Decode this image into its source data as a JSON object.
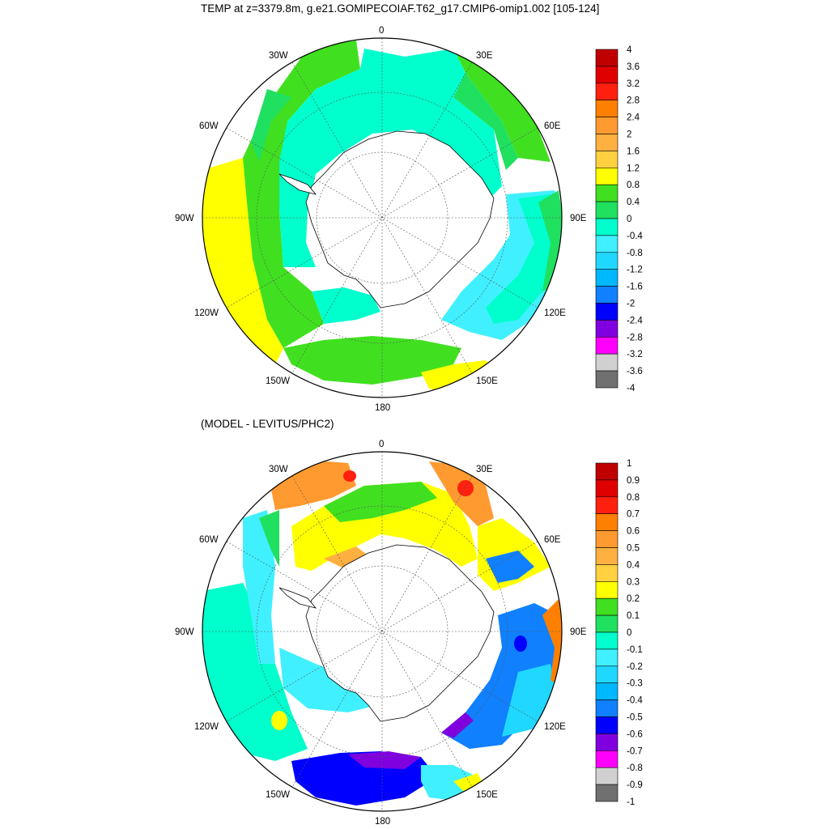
{
  "title": "TEMP at z=3379.8m, g.e21.GOMIPECOIAF.T62_g17.CMIP6-omip1.002 [105-124]",
  "subtitle": "(MODEL - LEVITUS/PHC2)",
  "longitude_labels": [
    "0",
    "30E",
    "60E",
    "90E",
    "120E",
    "150E",
    "180",
    "150W",
    "120W",
    "90W",
    "60W",
    "30W"
  ],
  "panels": [
    {
      "colorbar": {
        "labels": [
          "4",
          "3.6",
          "3.2",
          "2.8",
          "2.4",
          "2",
          "1.6",
          "1.2",
          "0.8",
          "0.4",
          "0",
          "-0.4",
          "-0.8",
          "-1.2",
          "-1.6",
          "-2",
          "-2.4",
          "-2.8",
          "-3.2",
          "-3.6",
          "-4"
        ],
        "colors": [
          "#c00000",
          "#e00000",
          "#ff2010",
          "#ff8000",
          "#ff9a30",
          "#ffb040",
          "#ffd040",
          "#ffff00",
          "#40e020",
          "#20e060",
          "#00ffcc",
          "#40f0ff",
          "#20d8ff",
          "#00b8ff",
          "#1080ff",
          "#0000ff",
          "#8000e0",
          "#ff00ff",
          "#d0d0d0",
          "#707070"
        ]
      }
    },
    {
      "colorbar": {
        "labels": [
          "1",
          "0.9",
          "0.8",
          "0.7",
          "0.6",
          "0.5",
          "0.4",
          "0.3",
          "0.2",
          "0.1",
          "0",
          "-0.1",
          "-0.2",
          "-0.3",
          "-0.4",
          "-0.5",
          "-0.6",
          "-0.7",
          "-0.8",
          "-0.9",
          "-1"
        ],
        "colors": [
          "#c00000",
          "#e00000",
          "#ff2010",
          "#ff8000",
          "#ff9a30",
          "#ffb040",
          "#ffd040",
          "#ffff00",
          "#40e020",
          "#20e060",
          "#00ffcc",
          "#40f0ff",
          "#20d8ff",
          "#00b8ff",
          "#1080ff",
          "#0000ff",
          "#8000e0",
          "#ff00ff",
          "#d0d0d0",
          "#707070"
        ]
      }
    }
  ]
}
